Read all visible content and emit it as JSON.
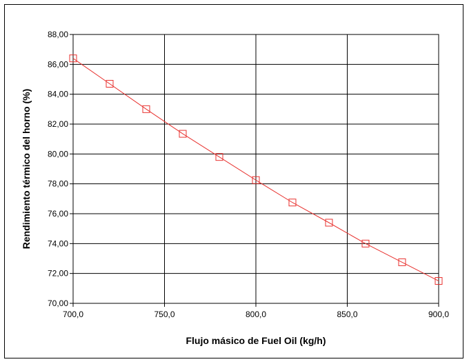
{
  "chart_data": {
    "type": "line",
    "xlabel": "Flujo másico de Fuel Oil (kg/h)",
    "ylabel": "Rendimiento térmico del horno (%)",
    "xlim": [
      700,
      900
    ],
    "ylim": [
      70,
      88
    ],
    "x_ticks": [
      700,
      750,
      800,
      850,
      900
    ],
    "x_tick_labels": [
      "700,0",
      "750,0",
      "800,0",
      "850,0",
      "900,0"
    ],
    "y_ticks": [
      70,
      72,
      74,
      76,
      78,
      80,
      82,
      84,
      86,
      88
    ],
    "y_tick_labels": [
      "70,00",
      "72,00",
      "74,00",
      "76,00",
      "78,00",
      "80,00",
      "82,00",
      "84,00",
      "86,00",
      "88,00"
    ],
    "grid": true,
    "series": [
      {
        "marker": "square",
        "color": "#e8322f",
        "x": [
          700,
          720,
          740,
          760,
          780,
          800,
          820,
          840,
          860,
          880,
          900
        ],
        "y": [
          86.4,
          84.7,
          83.0,
          81.35,
          79.8,
          78.25,
          76.75,
          75.4,
          74.0,
          72.75,
          71.5
        ]
      }
    ]
  }
}
